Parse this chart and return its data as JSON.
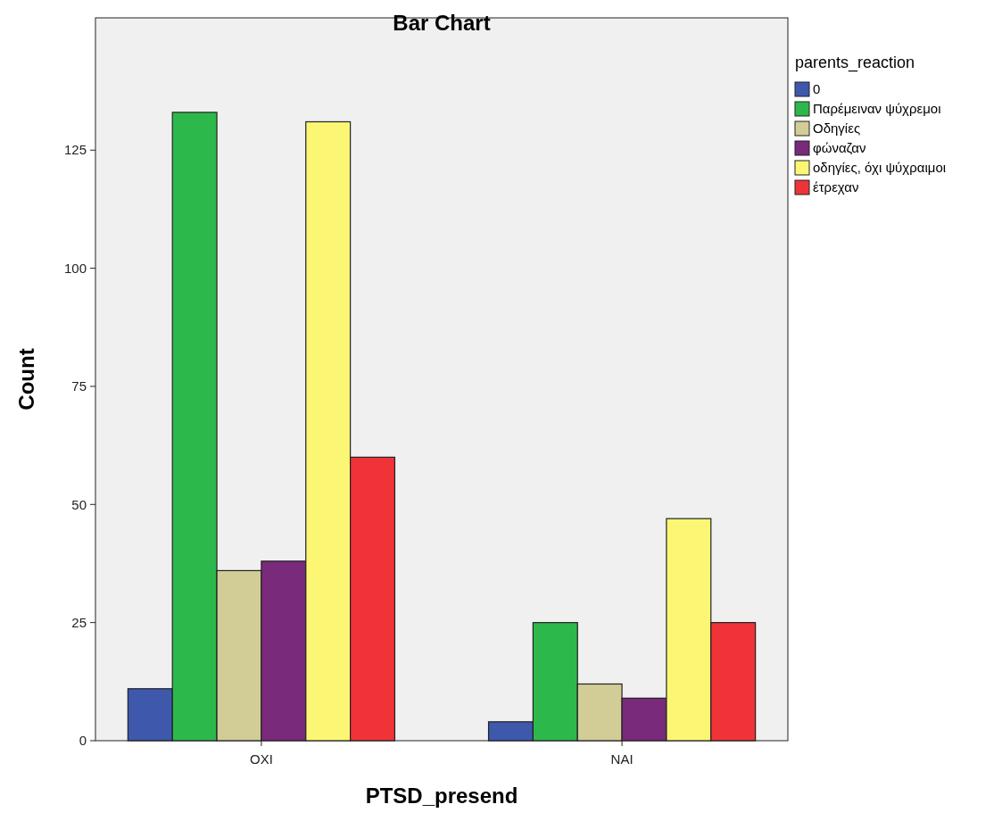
{
  "chart_data": {
    "type": "bar",
    "title": "Bar Chart",
    "xlabel": "PTSD_presend",
    "ylabel": "Count",
    "legend_title": "parents_reaction",
    "categories": [
      "ΟΧΙ",
      "ΝΑΙ"
    ],
    "series": [
      {
        "name": "0",
        "color": "#3e58ac",
        "values": [
          11,
          4
        ]
      },
      {
        "name": "Παρέμειναν ψύχρεμοι",
        "color": "#2db84c",
        "values": [
          133,
          25
        ]
      },
      {
        "name": "Οδηγίες",
        "color": "#d2cc96",
        "values": [
          36,
          12
        ]
      },
      {
        "name": "φώναζαν",
        "color": "#7a2a7a",
        "values": [
          38,
          9
        ]
      },
      {
        "name": "οδηγίες, όχι ψύχραιμοι",
        "color": "#fbf775",
        "values": [
          131,
          47
        ]
      },
      {
        "name": "έτρεχαν",
        "color": "#ef3338",
        "values": [
          60,
          25
        ]
      }
    ],
    "ylim": [
      0,
      153
    ],
    "yticks": [
      0,
      25,
      50,
      75,
      100,
      125
    ],
    "grid": false,
    "legend": "top right"
  }
}
